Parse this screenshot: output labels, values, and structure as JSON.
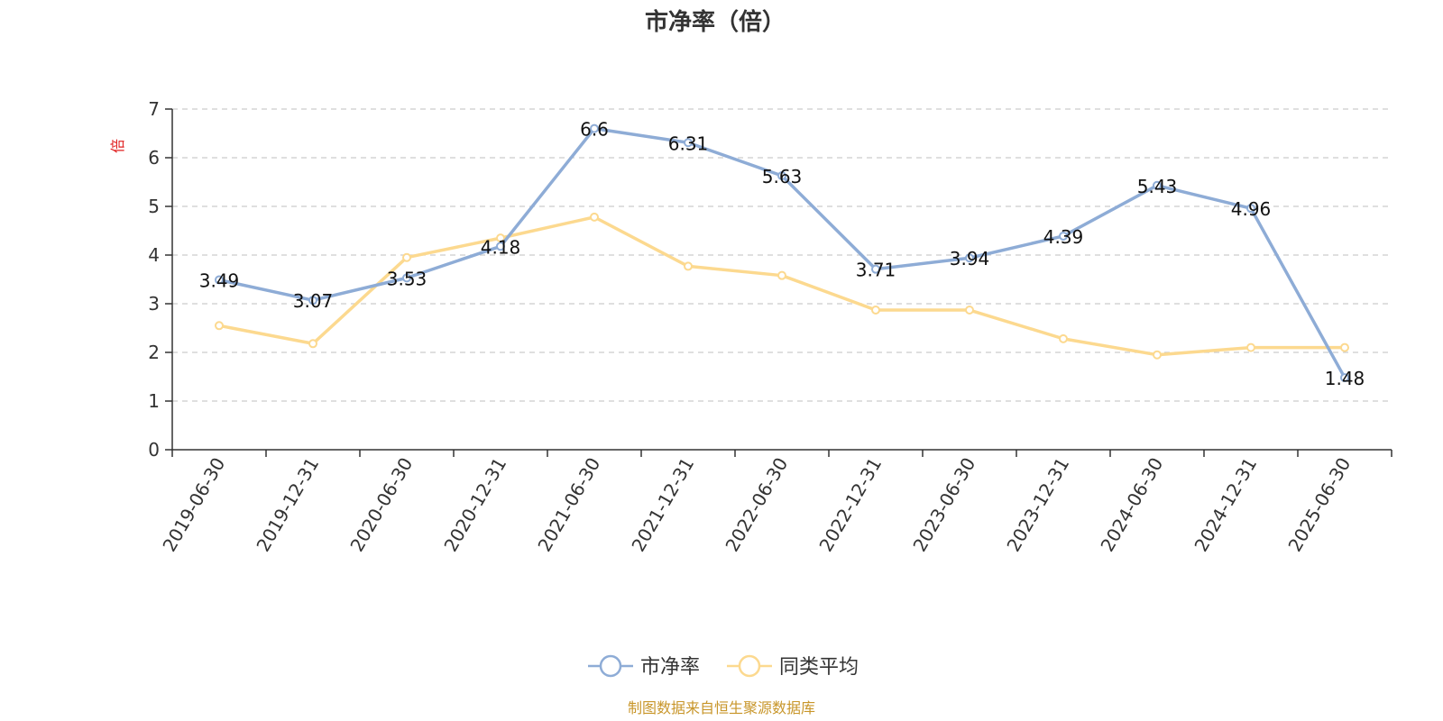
{
  "chart_data": {
    "type": "line",
    "title": "市净率（倍）",
    "ylabel": "倍",
    "ylim": [
      0,
      7
    ],
    "yticks": [
      "0",
      "1",
      "2",
      "3",
      "4",
      "5",
      "6",
      "7"
    ],
    "categories": [
      "2019-06-30",
      "2019-12-31",
      "2020-06-30",
      "2020-12-31",
      "2021-06-30",
      "2021-12-31",
      "2022-06-30",
      "2022-12-31",
      "2023-06-30",
      "2023-12-31",
      "2024-06-30",
      "2024-12-31",
      "2025-06-30"
    ],
    "grid": true,
    "legend_position": "bottom",
    "series": [
      {
        "name": "市净率",
        "color": "#8eacd6",
        "values": [
          3.49,
          3.07,
          3.53,
          4.18,
          6.6,
          6.31,
          5.63,
          3.71,
          3.94,
          4.39,
          5.43,
          4.96,
          1.48
        ],
        "labels": [
          "3.49",
          "3.07",
          "3.53",
          "4.18",
          "6.6",
          "6.31",
          "5.63",
          "3.71",
          "3.94",
          "4.39",
          "5.43",
          "4.96",
          "1.48"
        ]
      },
      {
        "name": "同类平均",
        "color": "#fcd98f",
        "values": [
          2.55,
          2.18,
          3.95,
          4.35,
          4.78,
          3.77,
          3.58,
          2.87,
          2.87,
          2.28,
          1.95,
          2.1,
          2.1
        ]
      }
    ],
    "source": "制图数据来自恒生聚源数据库"
  }
}
